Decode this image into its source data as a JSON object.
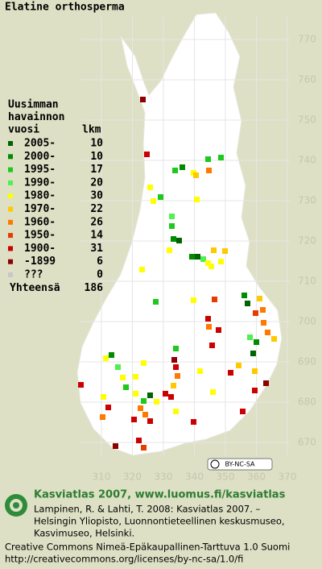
{
  "title": "Elatine orthosperma",
  "grid": {
    "y_labels": [
      "770",
      "760",
      "750",
      "740",
      "730",
      "720",
      "710",
      "700",
      "690",
      "680",
      "670"
    ],
    "x_labels": [
      "310",
      "320",
      "330",
      "340",
      "350",
      "360",
      "370"
    ]
  },
  "legend": {
    "header": [
      "Uusimman",
      "havainnon",
      "vuosi"
    ],
    "count_header": "lkm",
    "entries": [
      {
        "label": "2005-",
        "count": 10,
        "color": "#006400"
      },
      {
        "label": "2000-",
        "count": 10,
        "color": "#008c00"
      },
      {
        "label": "1995-",
        "count": 17,
        "color": "#1ec81e"
      },
      {
        "label": "1990-",
        "count": 20,
        "color": "#50f050"
      },
      {
        "label": "1980-",
        "count": 30,
        "color": "#ffff00"
      },
      {
        "label": "1970-",
        "count": 22,
        "color": "#ffc800"
      },
      {
        "label": "1960-",
        "count": 26,
        "color": "#ff7800"
      },
      {
        "label": "1950-",
        "count": 14,
        "color": "#e63c00"
      },
      {
        "label": "1900-",
        "count": 31,
        "color": "#cc0000"
      },
      {
        "label": "-1899",
        "count": 6,
        "color": "#8c0000"
      },
      {
        "label": "???",
        "count": 0,
        "color": "#c8c8c8"
      }
    ],
    "total_label": "Yhteensä",
    "total": 186
  },
  "badge": "BY-NC-SA",
  "footer": {
    "heading": "Kasviatlas 2007, www.luomus.fi/kasviatlas",
    "citation": [
      "Lampinen, R. & Lahti, T. 2008: Kasviatlas 2007. –",
      "Helsingin Yliopisto, Luonnontieteellinen keskusmuseo,",
      "Kasvimuseo, Helsinki."
    ],
    "license": [
      "Creative Commons Nimeä-Epäkaupallinen-Tarttuva 1.0 Suomi",
      "http://creativecommons.org/licenses/by-nc-sa/1.0/fi"
    ]
  }
}
